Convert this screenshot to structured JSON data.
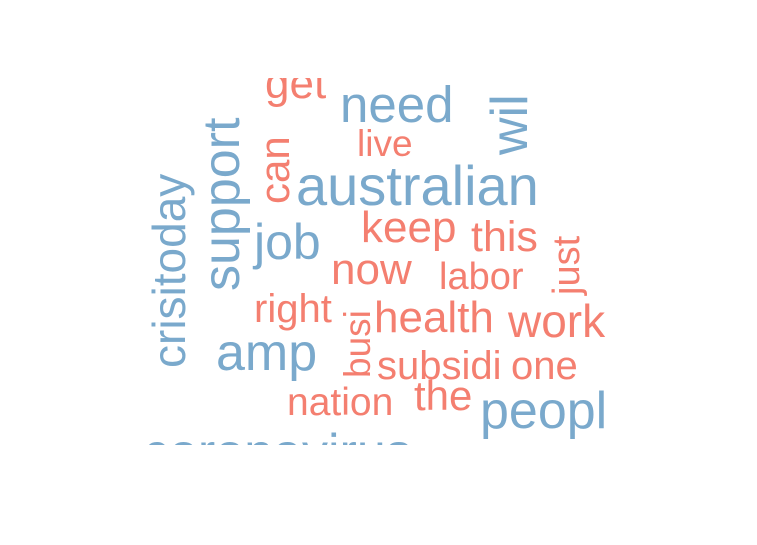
{
  "colors": {
    "blue": "#7aa9cc",
    "red": "#f47f70"
  },
  "words": [
    {
      "id": "coronavirus",
      "text": "coronavirus",
      "color": "blue"
    },
    {
      "id": "australian",
      "text": "australian",
      "color": "blue"
    },
    {
      "id": "need",
      "text": "need",
      "color": "blue"
    },
    {
      "id": "peopl",
      "text": "peopl",
      "color": "blue"
    },
    {
      "id": "cristoday",
      "text": "crisitoday",
      "color": "blue"
    },
    {
      "id": "support",
      "text": "support",
      "color": "blue"
    },
    {
      "id": "wil",
      "text": "wil",
      "color": "blue"
    },
    {
      "id": "amp",
      "text": "amp",
      "color": "blue"
    },
    {
      "id": "job",
      "text": "job",
      "color": "blue"
    },
    {
      "id": "get",
      "text": "get",
      "color": "red"
    },
    {
      "id": "can",
      "text": "can",
      "color": "red"
    },
    {
      "id": "live",
      "text": "live",
      "color": "red"
    },
    {
      "id": "keep",
      "text": "keep",
      "color": "red"
    },
    {
      "id": "this",
      "text": "this",
      "color": "red"
    },
    {
      "id": "now",
      "text": "now",
      "color": "red"
    },
    {
      "id": "labor",
      "text": "labor",
      "color": "red"
    },
    {
      "id": "just",
      "text": "just",
      "color": "red"
    },
    {
      "id": "right",
      "text": "right",
      "color": "red"
    },
    {
      "id": "busi",
      "text": "busi",
      "color": "red"
    },
    {
      "id": "health",
      "text": "health",
      "color": "red"
    },
    {
      "id": "work",
      "text": "work",
      "color": "red"
    },
    {
      "id": "subsidi",
      "text": "subsidi",
      "color": "red"
    },
    {
      "id": "one",
      "text": "one",
      "color": "red"
    },
    {
      "id": "nation",
      "text": "nation",
      "color": "red"
    },
    {
      "id": "the",
      "text": "the",
      "color": "red"
    }
  ]
}
